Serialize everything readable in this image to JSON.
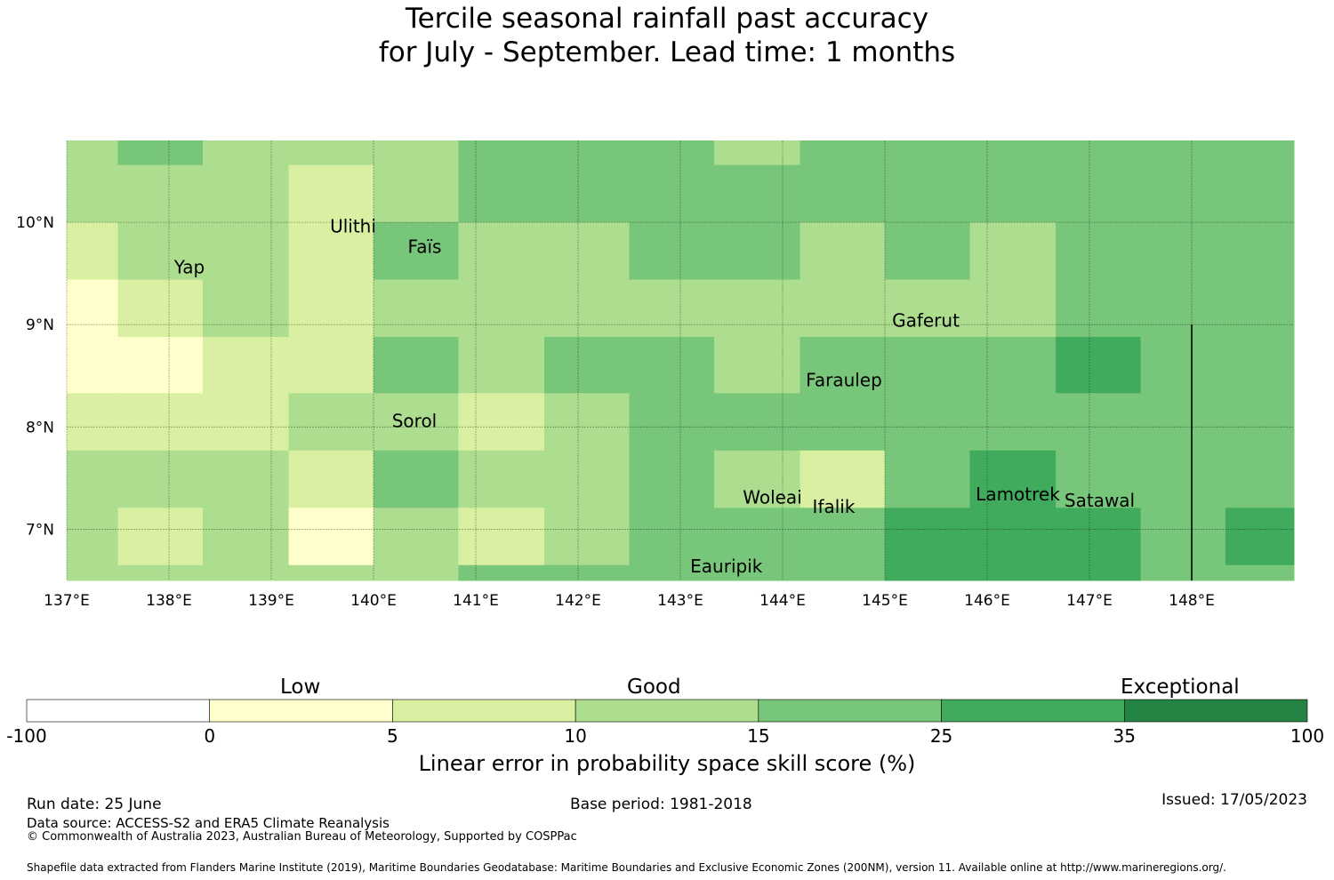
{
  "title": {
    "line1": "Tercile seasonal rainfall past accuracy",
    "line2": "for July - September. Lead time: 1 months"
  },
  "map": {
    "lon_range": [
      137.0,
      149.0
    ],
    "lat_range": [
      6.5,
      10.8
    ],
    "x_ticks": [
      {
        "value": 137,
        "label": "137°E"
      },
      {
        "value": 138,
        "label": "138°E"
      },
      {
        "value": 139,
        "label": "139°E"
      },
      {
        "value": 140,
        "label": "140°E"
      },
      {
        "value": 141,
        "label": "141°E"
      },
      {
        "value": 142,
        "label": "142°E"
      },
      {
        "value": 143,
        "label": "143°E"
      },
      {
        "value": 144,
        "label": "144°E"
      },
      {
        "value": 145,
        "label": "145°E"
      },
      {
        "value": 146,
        "label": "146°E"
      },
      {
        "value": 147,
        "label": "147°E"
      },
      {
        "value": 148,
        "label": "148°E"
      }
    ],
    "y_ticks": [
      {
        "value": 10,
        "label": "10°N"
      },
      {
        "value": 9,
        "label": "9°N"
      },
      {
        "value": 8,
        "label": "8°N"
      },
      {
        "value": 7,
        "label": "7°N"
      }
    ],
    "grid": "on",
    "boundary_line_lon": 148.0,
    "boundary_line_lat_range": [
      6.5,
      9.0
    ],
    "places": [
      {
        "name": "Ulithi",
        "lon": 139.8,
        "lat": 9.9
      },
      {
        "name": "Faïs",
        "lon": 140.5,
        "lat": 9.7
      },
      {
        "name": "Yap",
        "lon": 138.2,
        "lat": 9.5
      },
      {
        "name": "Gaferut",
        "lon": 145.4,
        "lat": 8.98
      },
      {
        "name": "Faraulep",
        "lon": 144.6,
        "lat": 8.4
      },
      {
        "name": "Sorol",
        "lon": 140.4,
        "lat": 8.0
      },
      {
        "name": "Woleai",
        "lon": 143.9,
        "lat": 7.25
      },
      {
        "name": "Ifalik",
        "lon": 144.5,
        "lat": 7.16
      },
      {
        "name": "Lamotrek",
        "lon": 146.3,
        "lat": 7.28
      },
      {
        "name": "Satawal",
        "lon": 147.1,
        "lat": 7.22
      },
      {
        "name": "Eauripik",
        "lon": 143.45,
        "lat": 6.58
      }
    ],
    "cell_lons": [
      137.0,
      137.5,
      138.33,
      139.17,
      140.0,
      140.83,
      141.67,
      142.5,
      143.33,
      144.17,
      145.0,
      145.83,
      146.67,
      147.5,
      148.33,
      149.0
    ],
    "cell_lats": [
      10.8,
      10.56,
      10.0,
      9.44,
      8.88,
      8.33,
      7.77,
      7.21,
      6.65,
      6.5
    ],
    "cell_classes": [
      [
        3,
        4,
        3,
        3,
        3,
        4,
        4,
        4,
        3,
        4,
        4,
        4,
        4,
        4,
        4
      ],
      [
        3,
        3,
        3,
        2,
        3,
        4,
        4,
        4,
        4,
        4,
        4,
        4,
        4,
        4,
        4
      ],
      [
        2,
        3,
        3,
        2,
        4,
        3,
        3,
        4,
        4,
        3,
        4,
        3,
        4,
        4,
        4
      ],
      [
        1,
        2,
        3,
        2,
        3,
        3,
        3,
        3,
        3,
        3,
        3,
        3,
        4,
        4,
        4
      ],
      [
        1,
        1,
        2,
        2,
        4,
        3,
        4,
        4,
        3,
        4,
        4,
        4,
        5,
        4,
        4
      ],
      [
        2,
        2,
        2,
        3,
        3,
        2,
        3,
        4,
        4,
        4,
        4,
        4,
        4,
        4,
        4
      ],
      [
        3,
        3,
        3,
        2,
        4,
        3,
        3,
        4,
        3,
        2,
        4,
        5,
        4,
        4,
        4
      ],
      [
        3,
        2,
        3,
        1,
        3,
        2,
        3,
        4,
        4,
        4,
        5,
        5,
        5,
        4,
        5
      ],
      [
        3,
        3,
        3,
        3,
        3,
        4,
        4,
        4,
        4,
        4,
        5,
        5,
        5,
        4,
        4
      ]
    ]
  },
  "colorbar": {
    "categories": [
      {
        "label": "Low",
        "position": "over 0–5"
      },
      {
        "label": "Good",
        "position": "over 10–15"
      },
      {
        "label": "Exceptional",
        "position": "over 35–100"
      }
    ],
    "ticks": [
      "-100",
      "0",
      "5",
      "10",
      "15",
      "25",
      "35",
      "100"
    ],
    "colors": [
      "#ffffff",
      "#ffffcc",
      "#d9f0a3",
      "#addd8e",
      "#78c679",
      "#41ab5d",
      "#238443"
    ],
    "label": "Linear error in probability space skill score (%)"
  },
  "footer": {
    "run_date": "Run date: 25 June",
    "base_period": "Base period: 1981-2018",
    "issued": "Issued: 17/05/2023",
    "data_source": "Data source: ACCESS-S2 and ERA5 Climate Reanalysis",
    "copyright": "© Commonwealth of Australia 2023, Australian Bureau of Meteorology, Supported by COSPPac",
    "shapefile": "Shapefile data extracted from Flanders Marine Institute (2019), Maritime Boundaries Geodatabase: Maritime Boundaries and Exclusive Economic Zones (200NM), version 11. Available online at http://www.marineregions.org/."
  }
}
